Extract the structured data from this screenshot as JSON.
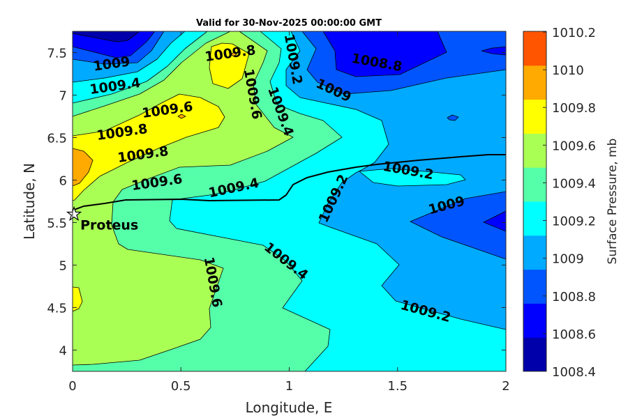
{
  "chart_data": {
    "type": "contour",
    "title": "Valid for 30-Nov-2025 00:00:00 GMT",
    "xlabel": "Longitude, E",
    "ylabel": "Latitude, N",
    "xlim": [
      0,
      2
    ],
    "ylim": [
      3.75,
      7.75
    ],
    "xticks": [
      0,
      0.5,
      1,
      1.5,
      2
    ],
    "xtick_labels": [
      "0",
      "0.5",
      "1",
      "1.5",
      "2"
    ],
    "yticks": [
      4,
      4.5,
      5,
      5.5,
      6,
      6.5,
      7,
      7.5
    ],
    "ytick_labels": [
      "4",
      "4.5",
      "5",
      "5.5",
      "6",
      "6.5",
      "7",
      "7.5"
    ],
    "grid": false,
    "colorbar": {
      "label": "Surface Pressure, mb",
      "range": [
        1008.4,
        1010.2
      ],
      "ticks": [
        1008.4,
        1008.6,
        1008.8,
        1009,
        1009.2,
        1009.4,
        1009.6,
        1009.8,
        1010,
        1010.2
      ],
      "tick_labels": [
        "1008.4",
        "1008.6",
        "1008.8",
        "1009",
        "1009.2",
        "1009.4",
        "1009.6",
        "1009.8",
        "1010",
        "1010.2"
      ],
      "colors": [
        "#0000aa",
        "#0000ff",
        "#0055ff",
        "#00aaff",
        "#00ffff",
        "#55ffaa",
        "#aaff55",
        "#ffff00",
        "#ffaa00",
        "#ff5500"
      ],
      "placement": "right"
    },
    "contour_levels": [
      1008.6,
      1008.8,
      1009,
      1009.2,
      1009.4,
      1009.6,
      1009.8,
      1010
    ],
    "contour_labels": [
      "1009",
      "1009.4",
      "1009.6",
      "1009.8",
      "1009.8",
      "1009.6",
      "1009.8",
      "1009.2",
      "1009.4",
      "1009.6",
      "1008.8",
      "1009",
      "1009.4",
      "1009.2",
      "1009.2",
      "1009",
      "1009.6",
      "1009.4",
      "1009.2"
    ],
    "marker": {
      "name": "Proteus",
      "lon": 0.01,
      "lat": 5.63,
      "symbol": "star"
    }
  }
}
